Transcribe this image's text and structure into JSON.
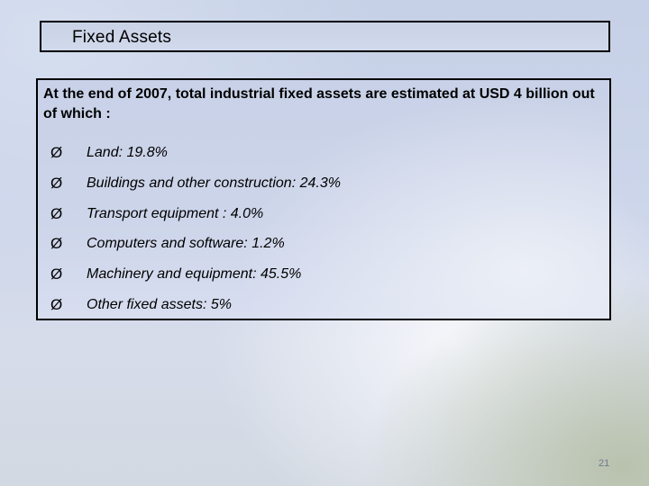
{
  "slide": {
    "title": "Fixed Assets",
    "intro": "At the end of 2007, total industrial fixed assets are estimated at USD 4 billion out of which :",
    "bullet_marker": "Ø",
    "bullets": [
      "Land: 19.8%",
      "Buildings and other construction: 24.3%",
      "Transport equipment :  4.0%",
      "Computers and software:   1.2%",
      "Machinery and equipment:  45.5%",
      "Other fixed assets: 5%"
    ],
    "page_number": "21"
  }
}
